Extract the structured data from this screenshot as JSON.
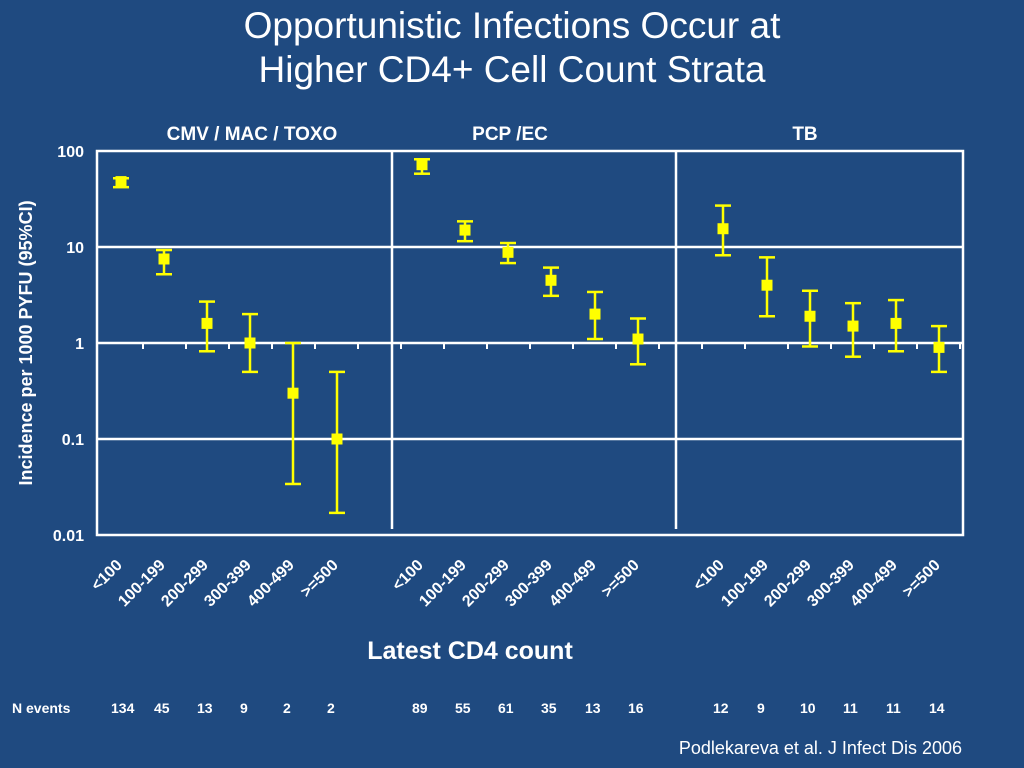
{
  "slide": {
    "title_line1": "Opportunistic Infections Occur at",
    "title_line2": "Higher CD4+ Cell Count Strata",
    "citation": "Podlekareva et al.  J Infect Dis 2006",
    "n_events_label": "N events"
  },
  "colors": {
    "background": "#1f4a80",
    "plot_background": "#1f4a80",
    "marker": "#ffff00",
    "grid": "#ffffff",
    "text": "#ffffff"
  },
  "chart_data": {
    "type": "scatter",
    "scale": "log",
    "ylabel": "Incidence per 1000 PYFU (95%CI)",
    "xlabel": "Latest CD4 count",
    "ylim": [
      0.01,
      100
    ],
    "y_ticks": [
      "100",
      "10",
      "1",
      "0.1",
      "0.01"
    ],
    "y_tick_values": [
      100,
      10,
      1,
      0.1,
      0.01
    ],
    "categories": [
      "<100",
      "100-199",
      "200-299",
      "300-399",
      "400-499",
      ">=500"
    ],
    "grid": true,
    "panels": [
      {
        "name": "CMV / MAC / TOXO",
        "values": [
          48,
          7.5,
          1.6,
          1.0,
          0.3,
          0.1
        ],
        "lower": [
          42,
          5.2,
          0.82,
          0.5,
          0.034,
          0.017
        ],
        "upper": [
          52,
          9.3,
          2.7,
          2.0,
          1.0,
          0.5
        ],
        "n_events": [
          "134",
          "45",
          "13",
          "9",
          "2",
          "2"
        ]
      },
      {
        "name": "PCP /EC",
        "values": [
          72,
          15,
          8.8,
          4.5,
          2.0,
          1.1
        ],
        "lower": [
          58,
          11.5,
          6.8,
          3.1,
          1.1,
          0.6
        ],
        "upper": [
          82,
          18.5,
          11,
          6.1,
          3.4,
          1.8
        ],
        "n_events": [
          "89",
          "55",
          "61",
          "35",
          "13",
          "16"
        ]
      },
      {
        "name": "TB",
        "values": [
          15.5,
          4.0,
          1.9,
          1.5,
          1.6,
          0.9
        ],
        "lower": [
          8.2,
          1.9,
          0.92,
          0.72,
          0.82,
          0.5
        ],
        "upper": [
          27,
          7.8,
          3.5,
          2.6,
          2.8,
          1.5
        ],
        "n_events": [
          "12",
          "9",
          "10",
          "11",
          "11",
          "14"
        ]
      }
    ]
  }
}
